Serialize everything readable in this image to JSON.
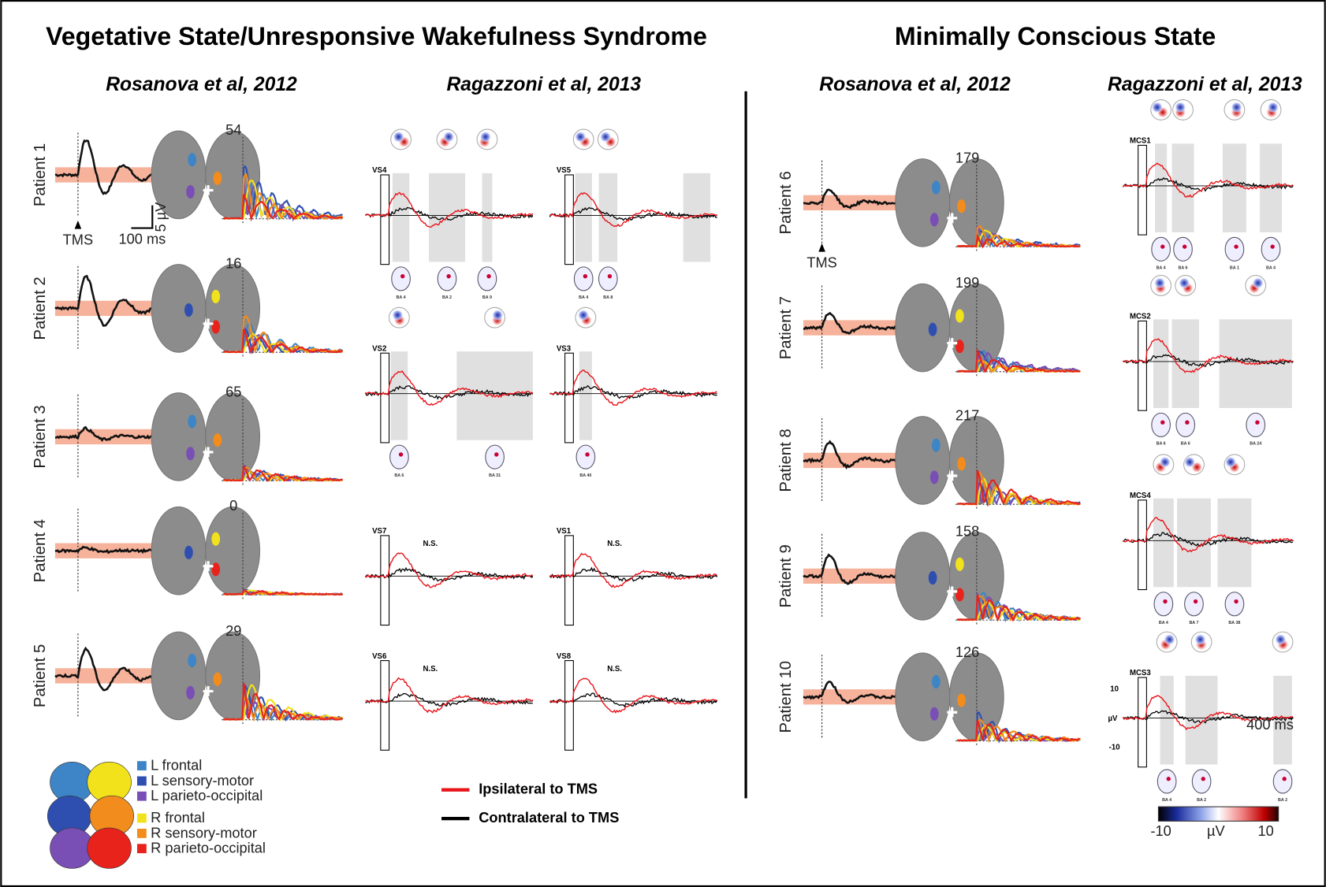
{
  "headings": {
    "left": "Vegetative State/Unresponsive Wakefulness Syndrome",
    "right": "Minimally Conscious State"
  },
  "subheadings": [
    "Rosanova et al, 2012",
    "Ragazzoni et al, 2013",
    "Rosanova et al, 2012",
    "Ragazzoni et al, 2013"
  ],
  "vs_patients": [
    {
      "label": "Patient 1",
      "count": 54
    },
    {
      "label": "Patient  2",
      "count": 16
    },
    {
      "label": "Patient  3",
      "count": 65
    },
    {
      "label": "Patient  4",
      "count": 0
    },
    {
      "label": "Patient 5",
      "count": 29
    }
  ],
  "mcs_patients": [
    {
      "label": "Patient 6",
      "count": 179
    },
    {
      "label": "Patient  7",
      "count": 199
    },
    {
      "label": "Patient 8",
      "count": 217
    },
    {
      "label": "Patient  9",
      "count": 158
    },
    {
      "label": "Patient  10",
      "count": 126
    }
  ],
  "tms_label": "TMS",
  "scale": {
    "voltage": "5 µV",
    "time": "100 ms"
  },
  "vs_panels": [
    {
      "label": "VS4",
      "areas": [
        "BA 4",
        "BA 2",
        "BA 9"
      ]
    },
    {
      "label": "VS5",
      "areas": [
        "BA 4",
        "BA 8"
      ]
    },
    {
      "label": "VS2",
      "areas": [
        "BA 6",
        "BA 31"
      ]
    },
    {
      "label": "VS3",
      "areas": [
        "BA 40"
      ]
    },
    {
      "label": "VS7",
      "note": "N.S."
    },
    {
      "label": "VS1",
      "note": "N.S."
    },
    {
      "label": "VS6",
      "note": "N.S."
    },
    {
      "label": "VS8",
      "note": "N.S."
    }
  ],
  "mcs_panels": [
    {
      "label": "MCS1",
      "areas": [
        "BA 4",
        "BA 6",
        "BA 1",
        "BA 4"
      ]
    },
    {
      "label": "MCS2",
      "areas": [
        "BA 6",
        "BA 6",
        "BA 24"
      ]
    },
    {
      "label": "MCS4",
      "areas": [
        "BA 4",
        "BA 7",
        "BA 38"
      ]
    },
    {
      "label": "MCS3",
      "areas": [
        "BA 4",
        "BA 2",
        "BA 2"
      ]
    }
  ],
  "mcs3_axis": {
    "top": "10",
    "unit": "µV",
    "bottom": "-10",
    "time": "400 ms"
  },
  "region_legend": [
    {
      "name": "L frontal",
      "color": "#3d85c6"
    },
    {
      "name": "L sensory-motor",
      "color": "#2f4fb0"
    },
    {
      "name": "L parieto-occipital",
      "color": "#7a4fb5"
    },
    {
      "name": "R frontal",
      "color": "#f2e21c"
    },
    {
      "name": "R sensory-motor",
      "color": "#f28c1c"
    },
    {
      "name": "R parieto-occipital",
      "color": "#e8231b"
    }
  ],
  "line_legend": [
    {
      "name": "Ipsilateral to TMS",
      "color": "#e8141b"
    },
    {
      "name": "Contralateral to TMS",
      "color": "#000000"
    }
  ],
  "colorbar": {
    "min": "-10",
    "unit": "µV",
    "max": "10"
  }
}
